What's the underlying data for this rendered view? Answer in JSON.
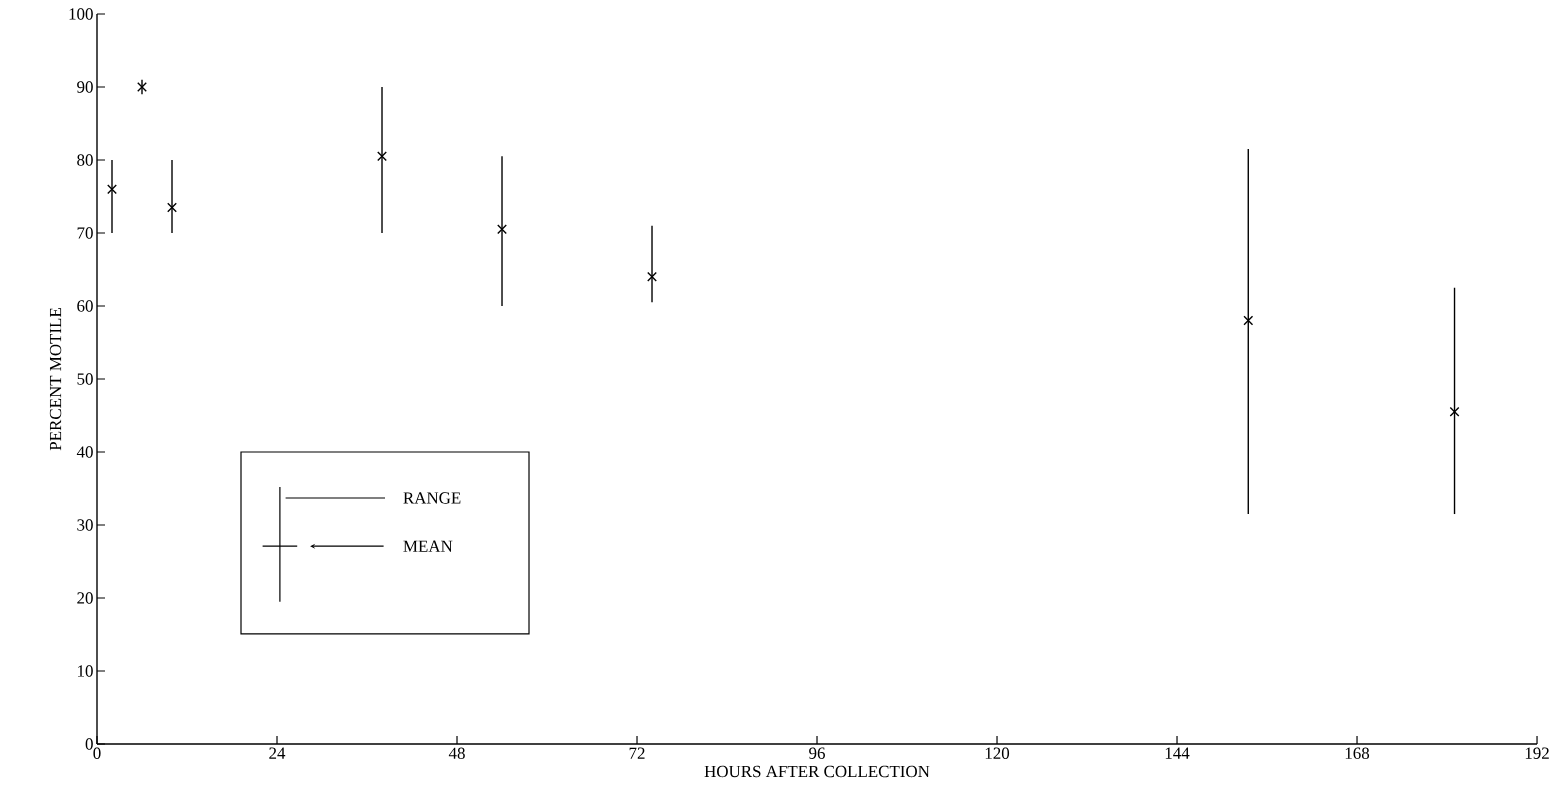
{
  "chart_data": {
    "type": "scatter",
    "xlabel": "HOURS AFTER COLLECTION",
    "ylabel": "PERCENT MOTILE",
    "x": [
      2,
      6,
      10,
      38,
      54,
      74,
      153.5,
      181
    ],
    "values": [
      76,
      90,
      73.5,
      80.5,
      70.5,
      64,
      58,
      45.5
    ],
    "errors": [
      [
        70,
        80
      ],
      [
        89,
        91
      ],
      [
        70,
        80
      ],
      [
        70,
        90
      ],
      [
        60,
        80.5
      ],
      [
        60.5,
        71
      ],
      [
        31.5,
        81.5
      ],
      [
        31.5,
        62.5
      ]
    ],
    "color": "#000000",
    "marker": "cross",
    "xlim": [
      0,
      192
    ],
    "ylim": [
      0,
      100
    ],
    "xticks": [
      0,
      24,
      48,
      72,
      96,
      120,
      144,
      168,
      192
    ],
    "yticks": [
      0,
      10,
      20,
      30,
      40,
      50,
      60,
      70,
      80,
      90,
      100
    ],
    "annotations": [
      "RANGE",
      "MEAN"
    ]
  }
}
